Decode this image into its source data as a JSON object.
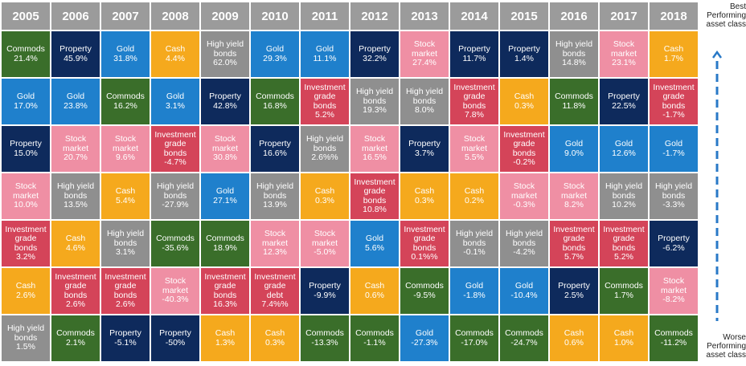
{
  "chart_data": {
    "type": "table",
    "years": [
      "2005",
      "2006",
      "2007",
      "2008",
      "2009",
      "2010",
      "2011",
      "2012",
      "2013",
      "2014",
      "2015",
      "2016",
      "2017",
      "2018"
    ],
    "columns": [
      [
        [
          "Commods",
          "21.4%"
        ],
        [
          "Gold",
          "17.0%"
        ],
        [
          "Property",
          "15.0%"
        ],
        [
          "Stock\nmarket",
          "10.0%"
        ],
        [
          "Investment\ngrade\nbonds",
          "3.2%"
        ],
        [
          "Cash",
          "2.6%"
        ],
        [
          "High yield\nbonds",
          "1.5%"
        ]
      ],
      [
        [
          "Property",
          "45.9%"
        ],
        [
          "Gold",
          "23.8%"
        ],
        [
          "Stock\nmarket",
          "20.7%"
        ],
        [
          "High yield\nbonds",
          "13.5%"
        ],
        [
          "Cash",
          "4.6%"
        ],
        [
          "Investment\ngrade\nbonds",
          "2.6%"
        ],
        [
          "Commods",
          "2.1%"
        ]
      ],
      [
        [
          "Gold",
          "31.8%"
        ],
        [
          "Commods",
          "16.2%"
        ],
        [
          "Stock\nmarket",
          "9.6%"
        ],
        [
          "Cash",
          "5.4%"
        ],
        [
          "High yield\nbonds",
          "3.1%"
        ],
        [
          "Investment\ngrade\nbonds",
          "2.6%"
        ],
        [
          "Property",
          "-5.1%"
        ]
      ],
      [
        [
          "Cash",
          "4.4%"
        ],
        [
          "Gold",
          "3.1%"
        ],
        [
          "Investment\ngrade\nbonds",
          "-4.7%"
        ],
        [
          "High yield\nbonds",
          "-27.9%"
        ],
        [
          "Commods",
          "-35.6%"
        ],
        [
          "Stock\nmarket",
          "-40.3%"
        ],
        [
          "Property",
          "-50%"
        ]
      ],
      [
        [
          "High yield\nbonds",
          "62.0%"
        ],
        [
          "Property",
          "42.8%"
        ],
        [
          "Stock\nmarket",
          "30.8%"
        ],
        [
          "Gold",
          "27.1%"
        ],
        [
          "Commods",
          "18.9%"
        ],
        [
          "Investment\ngrade\nbonds",
          "16.3%"
        ],
        [
          "Cash",
          "1.3%"
        ]
      ],
      [
        [
          "Gold",
          "29.3%"
        ],
        [
          "Commods",
          "16.8%"
        ],
        [
          "Property",
          "16.6%"
        ],
        [
          "High yield\nbonds",
          "13.9%"
        ],
        [
          "Stock\nmarket",
          "12.3%"
        ],
        [
          "Investment\ngrade\ndebt",
          "7.4%%"
        ],
        [
          "Cash",
          "0.3%"
        ]
      ],
      [
        [
          "Gold",
          "11.1%"
        ],
        [
          "Investment\ngrade\nbonds",
          "5.2%"
        ],
        [
          "High yield\nbonds",
          "2.6%%"
        ],
        [
          "Cash",
          "0.3%"
        ],
        [
          "Stock\nmarket",
          "-5.0%"
        ],
        [
          "Property",
          "-9.9%"
        ],
        [
          "Commods",
          "-13.3%"
        ]
      ],
      [
        [
          "Property",
          "32.2%"
        ],
        [
          "High yield\nbonds",
          "19.3%"
        ],
        [
          "Stock\nmarket",
          "16.5%"
        ],
        [
          "Investment\ngrade\nbonds",
          "10.8%"
        ],
        [
          "Gold",
          "5.6%"
        ],
        [
          "Cash",
          "0.6%"
        ],
        [
          "Commods",
          "-1.1%"
        ]
      ],
      [
        [
          "Stock\nmarket",
          "27.4%"
        ],
        [
          "High yield\nbonds",
          "8.0%"
        ],
        [
          "Property",
          "3.7%"
        ],
        [
          "Cash",
          "0.3%"
        ],
        [
          "Investment\ngrade\nbonds",
          "0.1%%"
        ],
        [
          "Commods",
          "-9.5%"
        ],
        [
          "Gold",
          "-27.3%"
        ]
      ],
      [
        [
          "Property",
          "11.7%"
        ],
        [
          "Investment\ngrade\nbonds",
          "7.8%"
        ],
        [
          "Stock\nmarket",
          "5.5%"
        ],
        [
          "Cash",
          "0.2%"
        ],
        [
          "High yield\nbonds",
          "-0.1%"
        ],
        [
          "Gold",
          "-1.8%"
        ],
        [
          "Commods",
          "-17.0%"
        ]
      ],
      [
        [
          "Property",
          "1.4%"
        ],
        [
          "Cash",
          "0.3%"
        ],
        [
          "Investment\ngrade\nbonds",
          "-0.2%"
        ],
        [
          "Stock\nmarket",
          "-0.3%"
        ],
        [
          "High yield\nbonds",
          "-4.2%"
        ],
        [
          "Gold",
          "-10.4%"
        ],
        [
          "Commods",
          "-24.7%"
        ]
      ],
      [
        [
          "High yield\nbonds",
          "14.8%"
        ],
        [
          "Commods",
          "11.8%"
        ],
        [
          "Gold",
          "9.0%"
        ],
        [
          "Stock\nmarket",
          "8.2%"
        ],
        [
          "Investment\ngrade\nbonds",
          "5.7%"
        ],
        [
          "Property",
          "2.5%"
        ],
        [
          "Cash",
          "0.6%"
        ]
      ],
      [
        [
          "Stock\nmarket",
          "23.1%"
        ],
        [
          "Property",
          "22.5%"
        ],
        [
          "Gold",
          "12.6%"
        ],
        [
          "High yield\nbonds",
          "10.2%"
        ],
        [
          "Investment\ngrade\nbonds",
          "5.2%"
        ],
        [
          "Commods",
          "1.7%"
        ],
        [
          "Cash",
          "1.0%"
        ]
      ],
      [
        [
          "Cash",
          "1.7%"
        ],
        [
          "Investment\ngrade\nbonds",
          "-1.7%"
        ],
        [
          "Gold",
          "-1.7%"
        ],
        [
          "High yield\nbonds",
          "-3.3%"
        ],
        [
          "Property",
          "-6.2%"
        ],
        [
          "Stock\nmarket",
          "-8.2%"
        ],
        [
          "Commods",
          "-11.2%"
        ]
      ]
    ],
    "colors": {
      "Commods": "#3a6e2a",
      "Property": "#0e2a5c",
      "Gold": "#1f80cc",
      "Cash": "#f5a91d",
      "High yield bonds": "#8f8f8f",
      "Stock market": "#ef8fa4",
      "Investment grade bonds": "#d44459",
      "Investment grade debt": "#d44459"
    },
    "annotations": {
      "top": "Best\nPerforming\nasset class",
      "bottom": "Worse\nPerforming\nasset class"
    },
    "arrow_color": "#2979c7"
  }
}
